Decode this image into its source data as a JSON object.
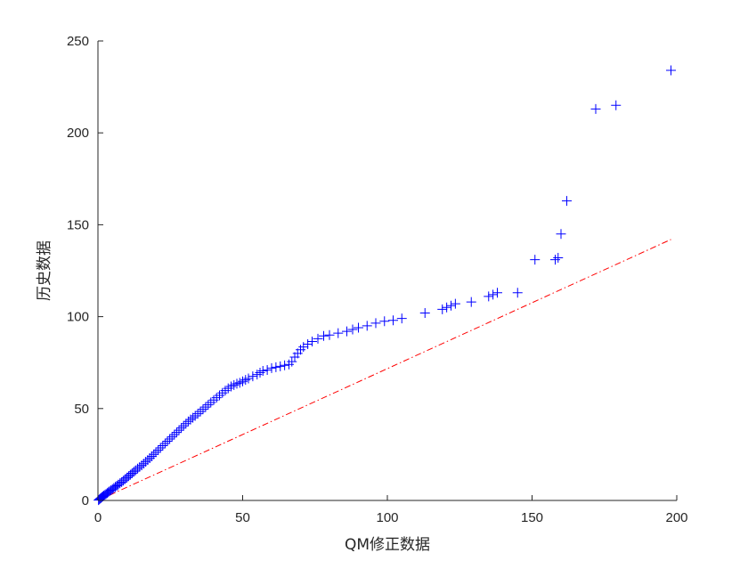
{
  "chart_data": {
    "type": "scatter",
    "title": "",
    "xlabel": "QM修正数据",
    "ylabel": "历史数据",
    "xlim": [
      0,
      200
    ],
    "ylim": [
      0,
      250
    ],
    "xticks": [
      "0",
      "50",
      "100",
      "150",
      "200"
    ],
    "yticks": [
      "0",
      "50",
      "100",
      "150",
      "200",
      "250"
    ],
    "grid": false,
    "legend": "none",
    "colors": {
      "marker": "#0000ff",
      "reference_line": "#ff0000",
      "axis": "#262626"
    },
    "series": [
      {
        "marker": "plus",
        "x": [
          0.2,
          0.5,
          0.8,
          1.1,
          1.4,
          1.7,
          2.0,
          2.4,
          2.8,
          3.2,
          3.6,
          4.0,
          4.5,
          5.0,
          5.5,
          6.0,
          6.5,
          7.0,
          7.6,
          8.2,
          8.8,
          9.4,
          10.0,
          10.6,
          11.2,
          11.8,
          12.4,
          13.0,
          13.7,
          14.4,
          15.1,
          15.8,
          16.5,
          17.2,
          17.9,
          18.6,
          19.3,
          20.0,
          20.8,
          21.6,
          22.4,
          23.2,
          24.0,
          24.8,
          25.6,
          26.4,
          27.2,
          28.0,
          28.8,
          29.6,
          30.4,
          31.2,
          32.0,
          32.8,
          33.6,
          34.5,
          35.4,
          36.3,
          37.2,
          38.1,
          39.0,
          40.0,
          41.0,
          42.0,
          43.0,
          44.0,
          45.0,
          46.0,
          47.0,
          48.0,
          49.0,
          50.0,
          51.0,
          52.0,
          53.5,
          55.0,
          56.0,
          57.0,
          58.5,
          60.0,
          61.5,
          63.0,
          64.5,
          66.0,
          67.0,
          68.0,
          69.0,
          70.0,
          71.0,
          72.5,
          74.0,
          76.0,
          78.0,
          80.0,
          83.0,
          86.0,
          88.0,
          90.0,
          93.0,
          96.0,
          99.0,
          102.0,
          105.0,
          113.0,
          119.0,
          120.5,
          122.0,
          123.5,
          129.0,
          135.0,
          136.5,
          138.0,
          145.0,
          151.0,
          158.0,
          159.0,
          160.0,
          162.0,
          172.0,
          179.0,
          198.0
        ],
        "y": [
          0.2,
          0.6,
          1.0,
          1.4,
          1.8,
          2.2,
          2.6,
          3.0,
          3.5,
          4.0,
          4.5,
          5.0,
          5.6,
          6.2,
          6.8,
          7.4,
          8.0,
          8.6,
          9.3,
          10.0,
          10.8,
          11.6,
          12.4,
          13.2,
          14.0,
          14.8,
          15.6,
          16.4,
          17.3,
          18.2,
          19.1,
          20.0,
          21.0,
          22.0,
          23.0,
          24.0,
          25.1,
          26.2,
          27.4,
          28.6,
          29.8,
          31.0,
          32.2,
          33.4,
          34.6,
          35.8,
          37.0,
          38.2,
          39.4,
          40.6,
          41.8,
          43.0,
          44.0,
          45.0,
          46.0,
          47.2,
          48.4,
          49.6,
          50.8,
          52.0,
          53.3,
          54.6,
          55.9,
          57.2,
          58.5,
          59.8,
          61.0,
          62.0,
          62.8,
          63.5,
          64.0,
          64.8,
          65.6,
          66.4,
          67.5,
          68.5,
          69.5,
          70.5,
          71.0,
          72.0,
          72.5,
          73.0,
          73.5,
          74.0,
          75.5,
          78.0,
          80.0,
          82.0,
          83.5,
          85.0,
          86.5,
          88.0,
          89.5,
          90.0,
          91.0,
          92.0,
          93.0,
          94.0,
          95.0,
          96.5,
          97.5,
          98.0,
          99.0,
          102.0,
          104.0,
          105.0,
          106.0,
          107.0,
          108.0,
          111.0,
          112.0,
          113.0,
          113.0,
          131.0,
          131.0,
          132.0,
          145.0,
          163.0,
          213.0,
          215.0,
          234.0
        ]
      },
      {
        "line_style": "dash-dot",
        "x": [
          0,
          198
        ],
        "y": [
          0,
          142
        ]
      }
    ]
  }
}
